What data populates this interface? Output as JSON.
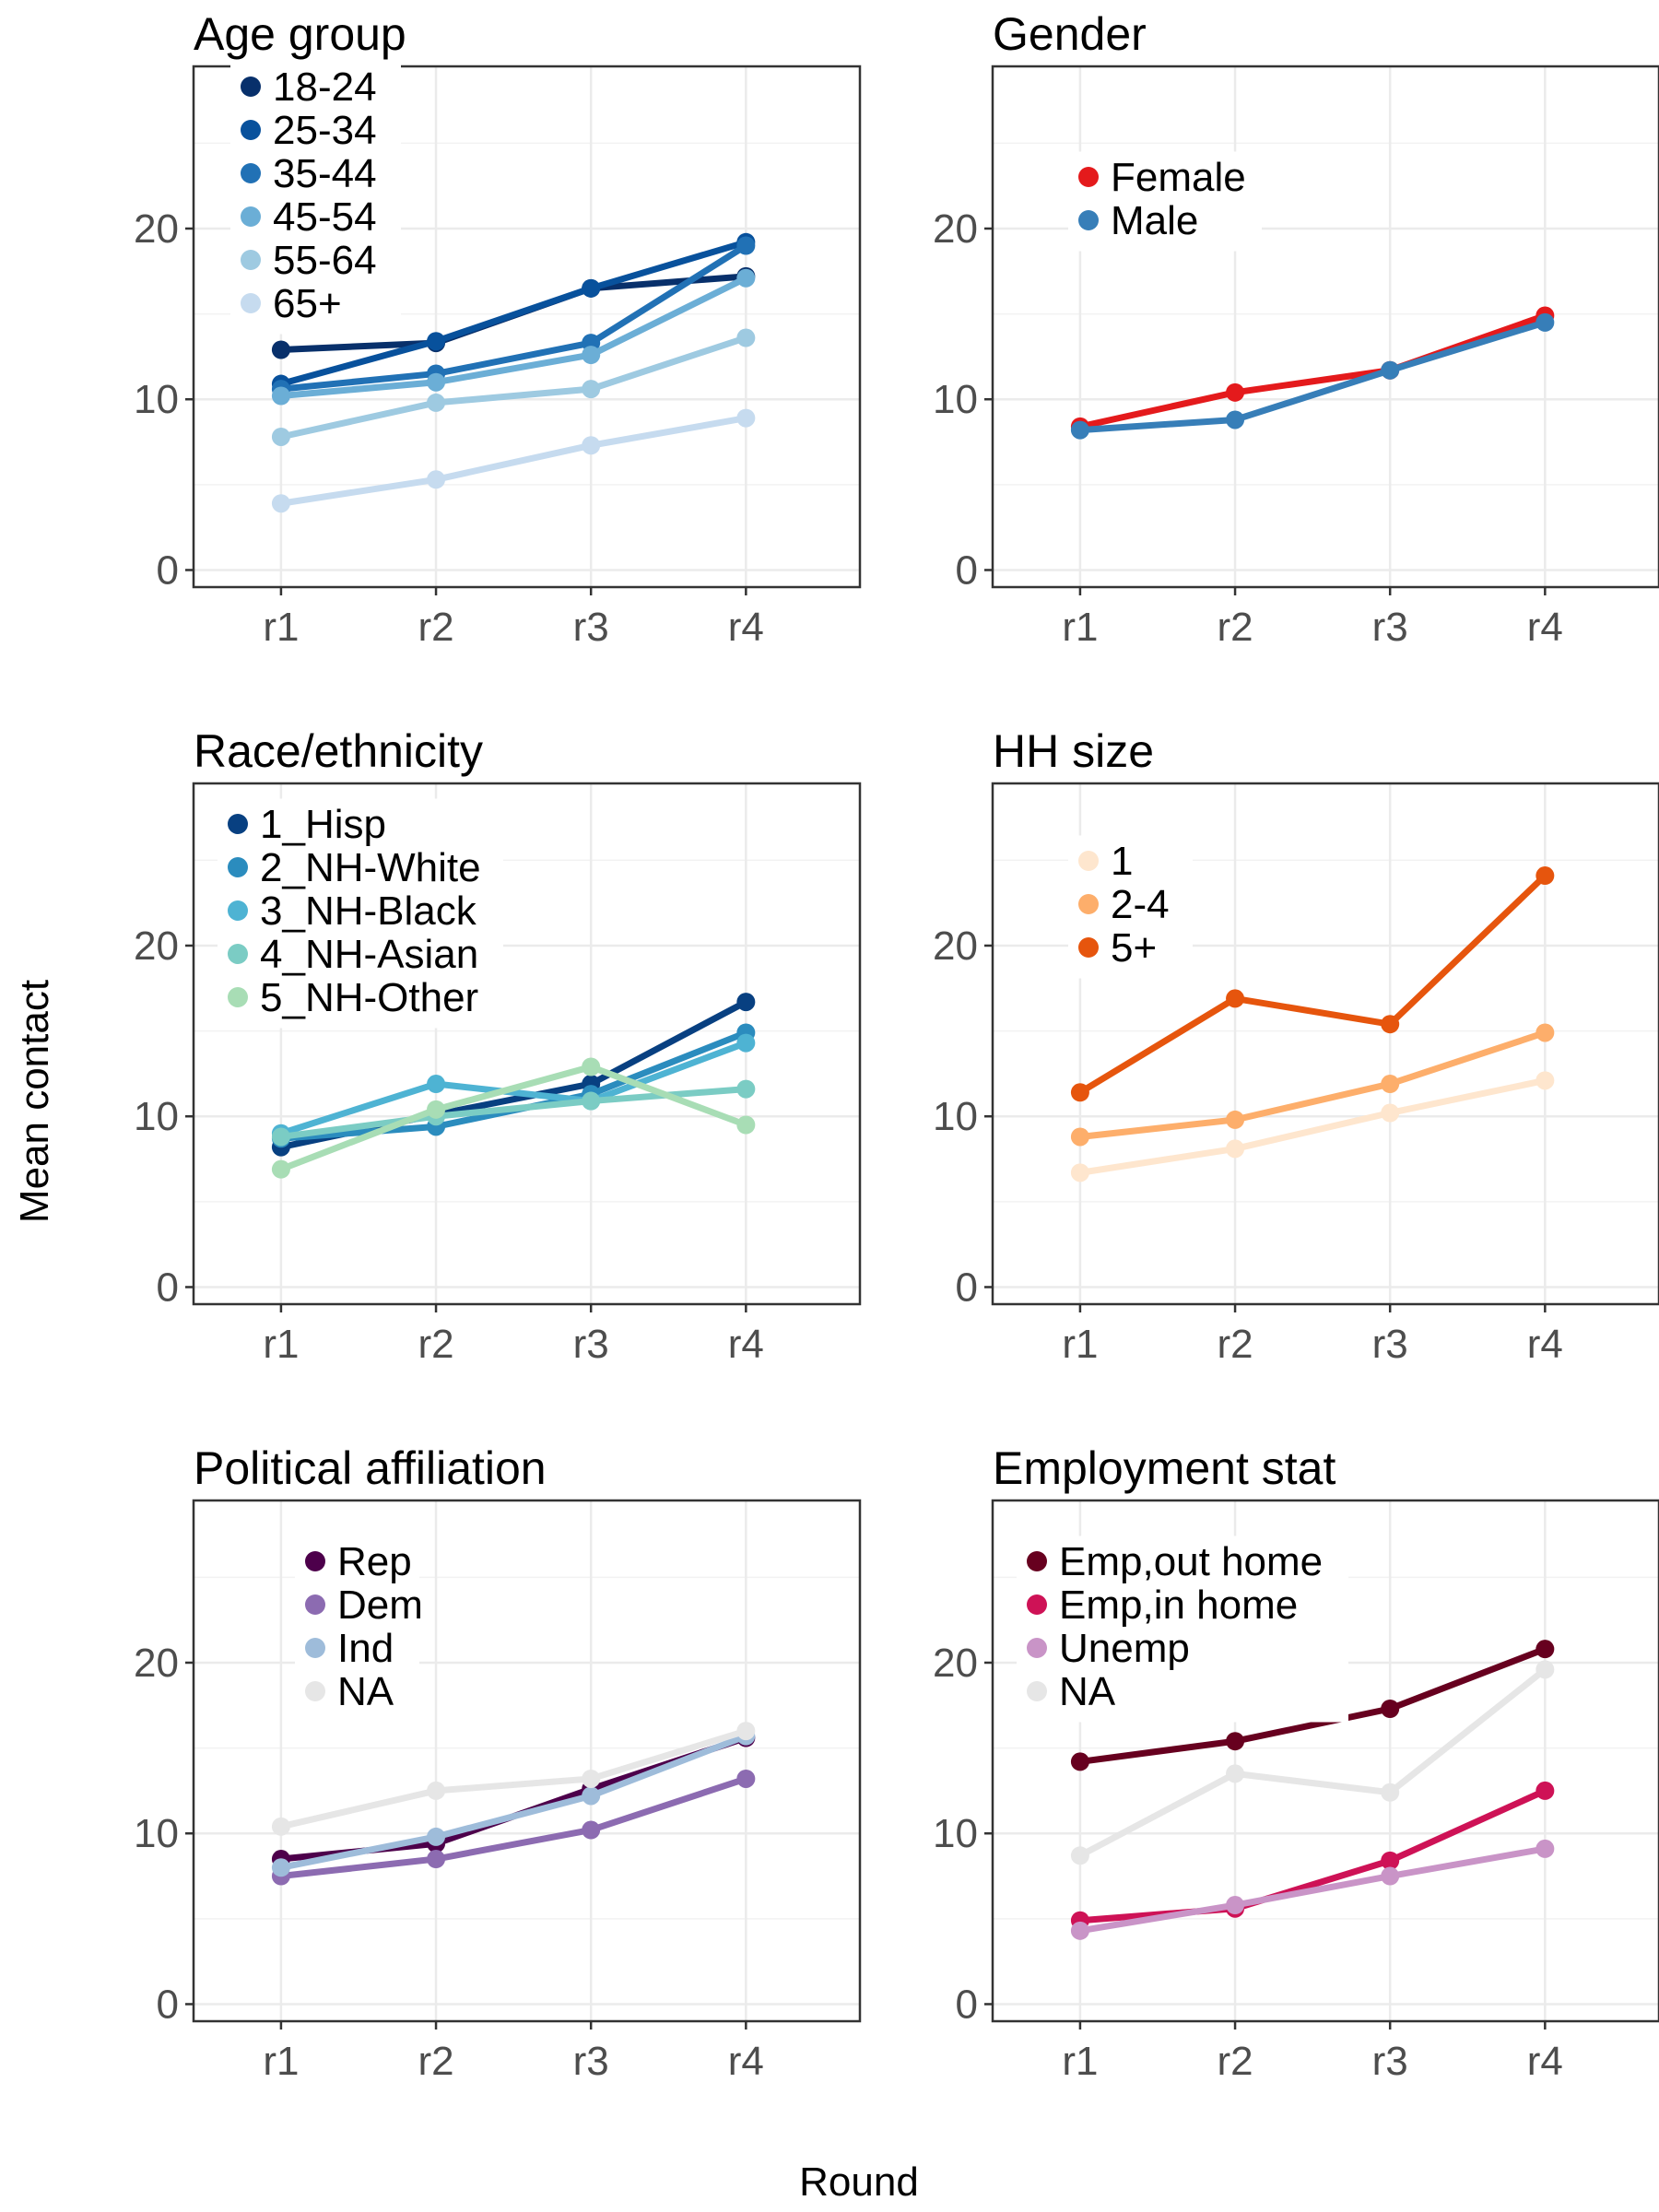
{
  "figure": {
    "ylabel": "Mean contact",
    "xlabel": "Round"
  },
  "chart_data": [
    {
      "type": "line",
      "title": "Age group",
      "categories": [
        "r1",
        "r2",
        "r3",
        "r4"
      ],
      "ylim": [
        -1,
        29.5
      ],
      "yticks": [
        0,
        10,
        20
      ],
      "grid": true,
      "legend_position": "top-left",
      "series": [
        {
          "name": "18-24",
          "color": "#08306b",
          "values": [
            12.9,
            13.3,
            16.5,
            17.2
          ]
        },
        {
          "name": "25-34",
          "color": "#08519c",
          "values": [
            10.9,
            13.4,
            16.5,
            19.2
          ]
        },
        {
          "name": "35-44",
          "color": "#2171b5",
          "values": [
            10.6,
            11.5,
            13.3,
            19.0
          ]
        },
        {
          "name": "45-54",
          "color": "#6baed6",
          "values": [
            10.2,
            11.0,
            12.6,
            17.1
          ]
        },
        {
          "name": "55-64",
          "color": "#9ecae1",
          "values": [
            7.8,
            9.8,
            10.6,
            13.6
          ]
        },
        {
          "name": "65+",
          "color": "#c6dbef",
          "values": [
            3.9,
            5.3,
            7.3,
            8.9
          ]
        }
      ]
    },
    {
      "type": "line",
      "title": "Gender",
      "categories": [
        "r1",
        "r2",
        "r3",
        "r4"
      ],
      "ylim": [
        -1,
        29.5
      ],
      "yticks": [
        0,
        10,
        20
      ],
      "grid": true,
      "legend_position": "top-left",
      "series": [
        {
          "name": "Female",
          "color": "#e41a1c",
          "values": [
            8.4,
            10.4,
            11.7,
            14.9
          ]
        },
        {
          "name": "Male",
          "color": "#377eb8",
          "values": [
            8.2,
            8.8,
            11.7,
            14.5
          ]
        }
      ]
    },
    {
      "type": "line",
      "title": "Race/ethnicity",
      "categories": [
        "r1",
        "r2",
        "r3",
        "r4"
      ],
      "ylim": [
        -1,
        29.5
      ],
      "yticks": [
        0,
        10,
        20
      ],
      "grid": true,
      "legend_position": "top-left",
      "series": [
        {
          "name": "1_Hisp",
          "color": "#084081",
          "values": [
            8.2,
            10.1,
            11.9,
            16.7
          ]
        },
        {
          "name": "2_NH-White",
          "color": "#2b8cbe",
          "values": [
            8.7,
            9.4,
            11.3,
            14.9
          ]
        },
        {
          "name": "3_NH-Black",
          "color": "#4eb3d3",
          "values": [
            9.0,
            11.9,
            10.9,
            14.3
          ]
        },
        {
          "name": "4_NH-Asian",
          "color": "#7bccc4",
          "values": [
            8.8,
            10.0,
            10.9,
            11.6
          ]
        },
        {
          "name": "5_NH-Other",
          "color": "#a8ddb5",
          "values": [
            6.9,
            10.4,
            12.9,
            9.5
          ]
        }
      ]
    },
    {
      "type": "line",
      "title": "HH size",
      "categories": [
        "r1",
        "r2",
        "r3",
        "r4"
      ],
      "ylim": [
        -1,
        29.5
      ],
      "yticks": [
        0,
        10,
        20
      ],
      "grid": true,
      "legend_position": "top-left",
      "series": [
        {
          "name": "1",
          "color": "#fee6ce",
          "values": [
            6.7,
            8.1,
            10.2,
            12.1
          ]
        },
        {
          "name": "2-4",
          "color": "#fdae6b",
          "values": [
            8.8,
            9.8,
            11.9,
            14.9
          ]
        },
        {
          "name": "5+",
          "color": "#e6550d",
          "values": [
            11.4,
            16.9,
            15.4,
            24.1
          ]
        }
      ]
    },
    {
      "type": "line",
      "title": "Political affiliation",
      "categories": [
        "r1",
        "r2",
        "r3",
        "r4"
      ],
      "ylim": [
        -1,
        29.5
      ],
      "yticks": [
        0,
        10,
        20
      ],
      "grid": true,
      "legend_position": "top-left",
      "series": [
        {
          "name": "Rep",
          "color": "#4d004b",
          "values": [
            8.5,
            9.4,
            12.6,
            15.6
          ]
        },
        {
          "name": "Dem",
          "color": "#8c6bb1",
          "values": [
            7.5,
            8.5,
            10.2,
            13.2
          ]
        },
        {
          "name": "Ind",
          "color": "#9ebcda",
          "values": [
            8.0,
            9.8,
            12.2,
            15.7
          ]
        },
        {
          "name": "NA",
          "color": "#e6e6e6",
          "values": [
            10.4,
            12.5,
            13.2,
            16.0
          ]
        }
      ]
    },
    {
      "type": "line",
      "title": "Employment stat",
      "categories": [
        "r1",
        "r2",
        "r3",
        "r4"
      ],
      "ylim": [
        -1,
        29.5
      ],
      "yticks": [
        0,
        10,
        20
      ],
      "grid": true,
      "legend_position": "top-left",
      "series": [
        {
          "name": "Emp,out home",
          "color": "#67001f",
          "values": [
            14.2,
            15.4,
            17.3,
            20.8
          ]
        },
        {
          "name": "Emp,in home",
          "color": "#ce1256",
          "values": [
            4.9,
            5.6,
            8.4,
            12.5
          ]
        },
        {
          "name": "Unemp",
          "color": "#c994c7",
          "values": [
            4.3,
            5.8,
            7.5,
            9.1
          ]
        },
        {
          "name": "NA",
          "color": "#e6e6e6",
          "values": [
            8.7,
            13.5,
            12.4,
            19.6
          ]
        }
      ]
    }
  ]
}
